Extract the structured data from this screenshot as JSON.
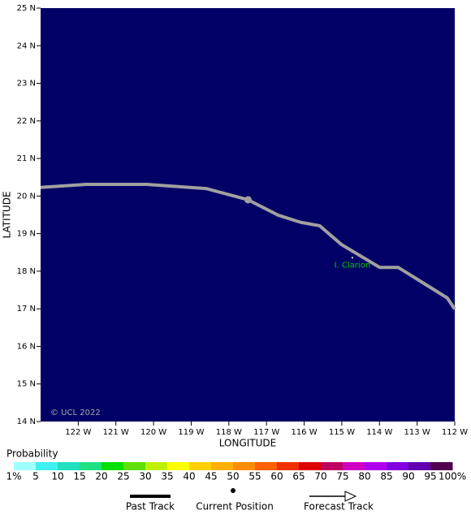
{
  "chart_data": {
    "type": "line",
    "x_label": "LONGITUDE",
    "y_label": "LATITUDE",
    "background": "#000066",
    "xlim": [
      -123,
      -112
    ],
    "xticks": [
      {
        "value": -122,
        "label": "122 W"
      },
      {
        "value": -121,
        "label": "121 W"
      },
      {
        "value": -120,
        "label": "120 W"
      },
      {
        "value": -119,
        "label": "119 W"
      },
      {
        "value": -118,
        "label": "118 W"
      },
      {
        "value": -117,
        "label": "117 W"
      },
      {
        "value": -116,
        "label": "116 W"
      },
      {
        "value": -115,
        "label": "115 W"
      },
      {
        "value": -114,
        "label": "114 W"
      },
      {
        "value": -113,
        "label": "113 W"
      },
      {
        "value": -112,
        "label": "112 W"
      }
    ],
    "ylim": [
      14,
      25
    ],
    "yticks": [
      {
        "value": 14,
        "label": "14 N"
      },
      {
        "value": 15,
        "label": "15 N"
      },
      {
        "value": 16,
        "label": "16 N"
      },
      {
        "value": 17,
        "label": "17 N"
      },
      {
        "value": 18,
        "label": "18 N"
      },
      {
        "value": 19,
        "label": "19 N"
      },
      {
        "value": 20,
        "label": "20 N"
      },
      {
        "value": 21,
        "label": "21 N"
      },
      {
        "value": 22,
        "label": "22 N"
      },
      {
        "value": 23,
        "label": "23 N"
      },
      {
        "value": 24,
        "label": "24 N"
      },
      {
        "value": 25,
        "label": "25 N"
      }
    ],
    "series": [
      {
        "color": "#a0a0a0",
        "x": [
          -123,
          -121.79,
          -120.19,
          -118.61,
          -117.49,
          -116.69,
          -116.09,
          -115.59,
          -115.01,
          -113.99,
          -113.5,
          -112.89,
          -112.2,
          -112
        ],
        "values": [
          20.23,
          20.31,
          20.31,
          20.2,
          19.9,
          19.49,
          19.3,
          19.21,
          18.71,
          18.1,
          18.1,
          17.72,
          17.29,
          16.99
        ]
      }
    ],
    "current_position": {
      "x": -117.49,
      "y": 19.9,
      "color": "#a0a0a0"
    },
    "island": {
      "label": "I. Clarion",
      "x": -114.72,
      "y": 18.36,
      "color": "#00cc00"
    },
    "credit": "© UCL 2022",
    "legend": [
      "Past Track",
      "Current Position",
      "Forecast Track"
    ],
    "probability_scale": {
      "title": "Probability",
      "ticks": [
        {
          "value": 1,
          "label": "1%"
        },
        5,
        10,
        15,
        20,
        25,
        30,
        35,
        40,
        45,
        50,
        55,
        60,
        65,
        70,
        75,
        80,
        85,
        90,
        95,
        {
          "value": 100,
          "label": "100%"
        }
      ],
      "colors": [
        "#a0ffff",
        "#40f0f0",
        "#20e0c0",
        "#20e080",
        "#00e000",
        "#60e000",
        "#c0f000",
        "#ffff00",
        "#ffd000",
        "#ffb000",
        "#ff8c00",
        "#ff6000",
        "#f03000",
        "#e00000",
        "#c00060",
        "#d000c0",
        "#b000f0",
        "#8000e0",
        "#6000b0",
        "#500050"
      ]
    }
  }
}
